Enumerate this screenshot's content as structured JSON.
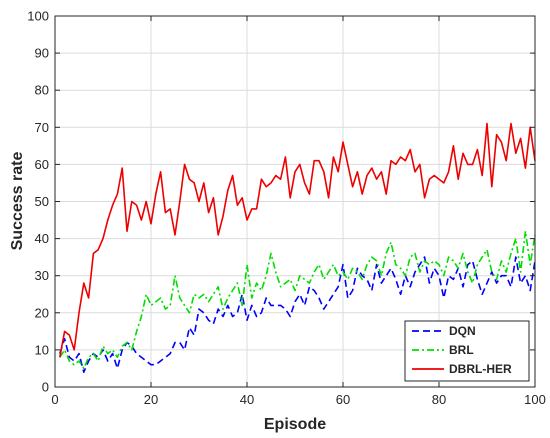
{
  "chart_data": {
    "type": "line",
    "title": "",
    "xlabel": "Episode",
    "ylabel": "Success rate",
    "xlim": [
      0,
      100
    ],
    "ylim": [
      0,
      100
    ],
    "xticks": [
      0,
      20,
      40,
      60,
      80,
      100
    ],
    "yticks": [
      0,
      10,
      20,
      30,
      40,
      50,
      60,
      70,
      80,
      90,
      100
    ],
    "grid": true,
    "legend_position": "bottom-right",
    "x": [
      1,
      2,
      3,
      4,
      5,
      6,
      7,
      8,
      9,
      10,
      11,
      12,
      13,
      14,
      15,
      16,
      17,
      18,
      19,
      20,
      21,
      22,
      23,
      24,
      25,
      26,
      27,
      28,
      29,
      30,
      31,
      32,
      33,
      34,
      35,
      36,
      37,
      38,
      39,
      40,
      41,
      42,
      43,
      44,
      45,
      46,
      47,
      48,
      49,
      50,
      51,
      52,
      53,
      54,
      55,
      56,
      57,
      58,
      59,
      60,
      61,
      62,
      63,
      64,
      65,
      66,
      67,
      68,
      69,
      70,
      71,
      72,
      73,
      74,
      75,
      76,
      77,
      78,
      79,
      80,
      81,
      82,
      83,
      84,
      85,
      86,
      87,
      88,
      89,
      90,
      91,
      92,
      93,
      94,
      95,
      96,
      97,
      98,
      99,
      100
    ],
    "series": [
      {
        "name": "DQN",
        "color": "#0000ff",
        "style": "dashed",
        "values": [
          9,
          13,
          8,
          7,
          9,
          4,
          7,
          9,
          8,
          10,
          7,
          9,
          5,
          10,
          12,
          11,
          9,
          8,
          7,
          6,
          6,
          7,
          8,
          9,
          12,
          12,
          10,
          16,
          14,
          21,
          20,
          18,
          17,
          21,
          19,
          22,
          19,
          20,
          25,
          18,
          22,
          19,
          20,
          24,
          22,
          22,
          22,
          21,
          19,
          23,
          25,
          22,
          27,
          26,
          24,
          21,
          23,
          25,
          27,
          33,
          24,
          26,
          32,
          30,
          29,
          26,
          33,
          28,
          30,
          32,
          29,
          25,
          30,
          27,
          31,
          33,
          35,
          28,
          32,
          30,
          24,
          30,
          29,
          32,
          27,
          33,
          34,
          29,
          25,
          28,
          31,
          28,
          30,
          30,
          27,
          35,
          28,
          30,
          26,
          34
        ]
      },
      {
        "name": "BRL",
        "color": "#00dd00",
        "style": "dashdot",
        "values": [
          8,
          10,
          7,
          6,
          7,
          5,
          8,
          9,
          7,
          11,
          9,
          10,
          8,
          11,
          12,
          10,
          15,
          19,
          25,
          22,
          23,
          24,
          21,
          22,
          30,
          24,
          22,
          20,
          25,
          24,
          25,
          23,
          25,
          27,
          21,
          24,
          26,
          28,
          22,
          33,
          24,
          28,
          26,
          30,
          36,
          31,
          27,
          28,
          29,
          26,
          30,
          29,
          28,
          31,
          33,
          29,
          31,
          33,
          30,
          31,
          29,
          32,
          31,
          29,
          33,
          35,
          34,
          30,
          36,
          39,
          33,
          32,
          30,
          35,
          36,
          31,
          34,
          33,
          34,
          33,
          30,
          35,
          34,
          32,
          36,
          31,
          28,
          33,
          35,
          37,
          31,
          29,
          34,
          31,
          36,
          40,
          31,
          42,
          33,
          41
        ]
      },
      {
        "name": "DBRL-HER",
        "color": "#ee0000",
        "style": "solid",
        "values": [
          8,
          15,
          14,
          10,
          20,
          28,
          24,
          36,
          37,
          40,
          45,
          49,
          52,
          59,
          42,
          50,
          49,
          45,
          50,
          44,
          52,
          58,
          47,
          48,
          41,
          50,
          60,
          56,
          55,
          50,
          55,
          47,
          51,
          41,
          46,
          53,
          57,
          49,
          51,
          45,
          48,
          48,
          56,
          54,
          55,
          57,
          56,
          62,
          51,
          58,
          60,
          55,
          52,
          61,
          61,
          58,
          51,
          62,
          58,
          66,
          60,
          54,
          58,
          52,
          57,
          59,
          56,
          58,
          52,
          61,
          60,
          62,
          61,
          64,
          58,
          60,
          51,
          56,
          57,
          56,
          55,
          58,
          65,
          56,
          63,
          60,
          60,
          64,
          57,
          71,
          54,
          68,
          66,
          61,
          71,
          63,
          67,
          59,
          70,
          61
        ]
      }
    ]
  }
}
